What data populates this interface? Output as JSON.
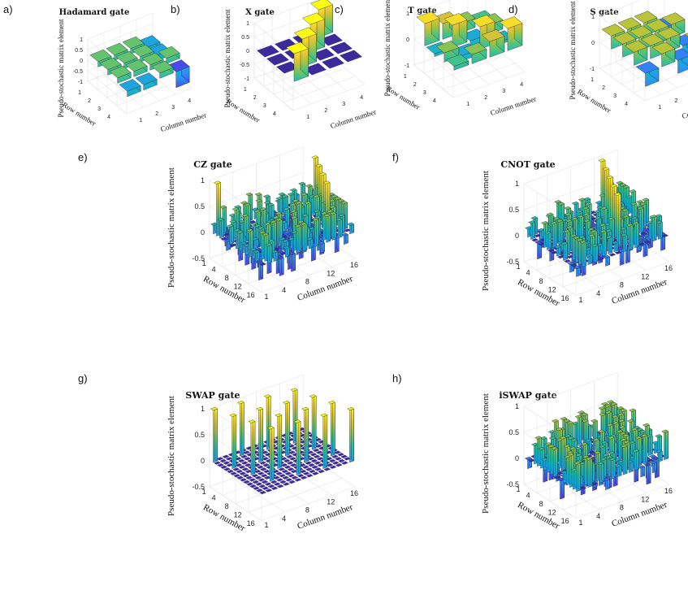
{
  "figure": {
    "colormap": [
      "#3e26a8",
      "#4752f4",
      "#2c90f4",
      "#15b2d2",
      "#3ec28c",
      "#a6c33c",
      "#f2c23a",
      "#f9fb15"
    ],
    "floor_color": "#3c2a9a"
  },
  "chart_data": [
    {
      "id": "a",
      "letter": "a)",
      "type": "bar3d",
      "title": "Hadamard gate",
      "xlabel": "Column number",
      "ylabel": "Row number",
      "zlabel": "Pseudo-stochastic matrix element",
      "n": 4,
      "zlim": [
        -1,
        1
      ],
      "zticks": [
        "1",
        "0.5",
        "0",
        "-0.5",
        "-1"
      ],
      "row_ticks": [
        "1",
        "2",
        "3",
        "4"
      ],
      "col_ticks": [
        "1",
        "2",
        "3",
        "4"
      ],
      "values": [
        [
          0.25,
          0.25,
          0.25,
          -0.25
        ],
        [
          0.25,
          0.25,
          0.25,
          -0.25
        ],
        [
          0.25,
          0.25,
          0.25,
          0.25
        ],
        [
          -0.25,
          -0.25,
          0.25,
          -0.75
        ]
      ]
    },
    {
      "id": "b",
      "letter": "b)",
      "type": "bar3d",
      "title": "X gate",
      "xlabel": "Column number",
      "ylabel": "Row number",
      "zlabel": "Pseudo-stochastic matrix element",
      "n": 4,
      "zlim": [
        -1,
        1
      ],
      "zticks": [
        "1",
        "0.5",
        "0",
        "-0.5",
        "-1"
      ],
      "row_ticks": [
        "1",
        "2",
        "3",
        "4"
      ],
      "col_ticks": [
        "1",
        "2",
        "3",
        "4"
      ],
      "values": [
        [
          0,
          0,
          0,
          1
        ],
        [
          0,
          0,
          1,
          0
        ],
        [
          0,
          1,
          0,
          0
        ],
        [
          1,
          0,
          0,
          0
        ]
      ]
    },
    {
      "id": "c",
      "letter": "c)",
      "type": "bar3d",
      "title": "T gate",
      "xlabel": "Column number",
      "ylabel": "Row number",
      "zlabel": "Pseudo-stochastic matrix element",
      "n": 4,
      "zlim": [
        -1,
        1
      ],
      "zticks": [
        "1",
        "0",
        "-1"
      ],
      "row_ticks": [
        "1",
        "2",
        "3",
        "4"
      ],
      "col_ticks": [
        "1",
        "2",
        "3",
        "4"
      ],
      "values": [
        [
          0.85,
          0.6,
          0.35,
          0.15
        ],
        [
          -0.1,
          0.85,
          -0.2,
          0.35
        ],
        [
          0.35,
          -0.2,
          0.85,
          -0.1
        ],
        [
          0.15,
          0.35,
          0.6,
          0.85
        ]
      ]
    },
    {
      "id": "d",
      "letter": "d)",
      "type": "bar3d",
      "title": "S gate",
      "xlabel": "Column number",
      "ylabel": "Row number",
      "zlabel": "Pseudo-stochastic matrix element",
      "n": 4,
      "zlim": [
        -1,
        1
      ],
      "zticks": [
        "1",
        "0",
        "-1"
      ],
      "row_ticks": [
        "1",
        "2",
        "3",
        "4"
      ],
      "col_ticks": [
        "1",
        "2",
        "3",
        "4"
      ],
      "values": [
        [
          0.5,
          0.5,
          0.5,
          -0.5
        ],
        [
          0.5,
          0.5,
          0.5,
          0.5
        ],
        [
          0.5,
          0.5,
          0.5,
          -0.5
        ],
        [
          -0.5,
          0.5,
          -0.5,
          0.5
        ]
      ]
    },
    {
      "id": "e",
      "letter": "e)",
      "type": "bar3d",
      "title": "CZ gate",
      "xlabel": "Column number",
      "ylabel": "Row number",
      "zlabel": "Pseudo-stochastic matrix element",
      "n": 16,
      "zlim": [
        -0.5,
        1
      ],
      "zticks": [
        "1",
        "0.5",
        "0",
        "-0.5"
      ],
      "row_ticks": [
        "1",
        "4",
        "8",
        "12",
        "16"
      ],
      "col_ticks": [
        "1",
        "4",
        "8",
        "12",
        "16"
      ],
      "pattern": {
        "kind": "dense",
        "seed": 11,
        "diag_value": 1,
        "scale": 0.65
      }
    },
    {
      "id": "f",
      "letter": "f)",
      "type": "bar3d",
      "title": "CNOT gate",
      "xlabel": "Column number",
      "ylabel": "Row number",
      "zlabel": "Pseudo-stochastic matrix element",
      "n": 16,
      "zlim": [
        -0.5,
        1
      ],
      "zticks": [
        "1",
        "0.5",
        "0",
        "-0.5"
      ],
      "row_ticks": [
        "1",
        "4",
        "8",
        "12",
        "16"
      ],
      "col_ticks": [
        "1",
        "4",
        "8",
        "12",
        "16"
      ],
      "pattern": {
        "kind": "dense",
        "seed": 23,
        "diag_value": 1,
        "scale": 0.6
      }
    },
    {
      "id": "g",
      "letter": "g)",
      "type": "bar3d",
      "title": "SWAP gate",
      "xlabel": "Column number",
      "ylabel": "Row number",
      "zlabel": "Pseudo-stochastic matrix element",
      "n": 16,
      "zlim": [
        -0.5,
        1
      ],
      "zticks": [
        "1",
        "0.5",
        "0",
        "-0.5"
      ],
      "row_ticks": [
        "1",
        "4",
        "8",
        "12",
        "16"
      ],
      "col_ticks": [
        "1",
        "4",
        "8",
        "12",
        "16"
      ],
      "pattern": {
        "kind": "permutation",
        "perm": [
          0,
          4,
          8,
          12,
          1,
          5,
          9,
          13,
          2,
          6,
          10,
          14,
          3,
          7,
          11,
          15
        ]
      }
    },
    {
      "id": "h",
      "letter": "h)",
      "type": "bar3d",
      "title": "iSWAP gate",
      "xlabel": "Column number",
      "ylabel": "Row number",
      "zlabel": "Pseudo-stochastic matrix element",
      "n": 16,
      "zlim": [
        -0.5,
        1
      ],
      "zticks": [
        "1",
        "0.5",
        "0",
        "-0.5"
      ],
      "row_ticks": [
        "1",
        "4",
        "8",
        "12",
        "16"
      ],
      "col_ticks": [
        "1",
        "4",
        "8",
        "12",
        "16"
      ],
      "pattern": {
        "kind": "dense",
        "seed": 47,
        "diag_value": 0.6,
        "scale": 0.7
      }
    }
  ]
}
